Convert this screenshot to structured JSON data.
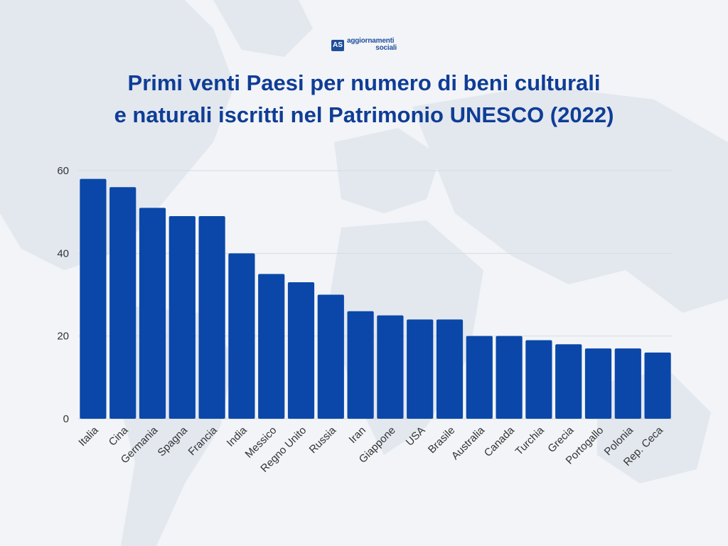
{
  "logo": {
    "mark": "AS",
    "line1": "aggiornamenti",
    "line2": "sociali"
  },
  "title": {
    "line1": "Primi venti Paesi per numero di beni culturali",
    "line2": "e naturali iscritti nel Patrimonio UNESCO (2022)"
  },
  "colors": {
    "bar": "#0a47a8",
    "title": "#0f3d96",
    "grid": "#d6dbe3",
    "tick_text": "#333333",
    "background": "#f2f4f7",
    "map_land": "#e3e8ef"
  },
  "chart_data": {
    "type": "bar",
    "title": "Primi venti Paesi per numero di beni culturali e naturali iscritti nel Patrimonio UNESCO (2022)",
    "xlabel": "",
    "ylabel": "",
    "ylim": [
      0,
      60
    ],
    "yticks": [
      0,
      20,
      40,
      60
    ],
    "grid": true,
    "legend": "none",
    "categories": [
      "Italia",
      "Cina",
      "Germania",
      "Spagna",
      "Francia",
      "India",
      "Messico",
      "Regno Unito",
      "Russia",
      "Iran",
      "Giappone",
      "USA",
      "Brasile",
      "Australia",
      "Canada",
      "Turchia",
      "Grecia",
      "Portogallo",
      "Polonia",
      "Rep. Ceca"
    ],
    "values": [
      58,
      56,
      51,
      49,
      49,
      40,
      35,
      33,
      30,
      26,
      25,
      24,
      24,
      20,
      20,
      19,
      18,
      17,
      17,
      16
    ]
  }
}
